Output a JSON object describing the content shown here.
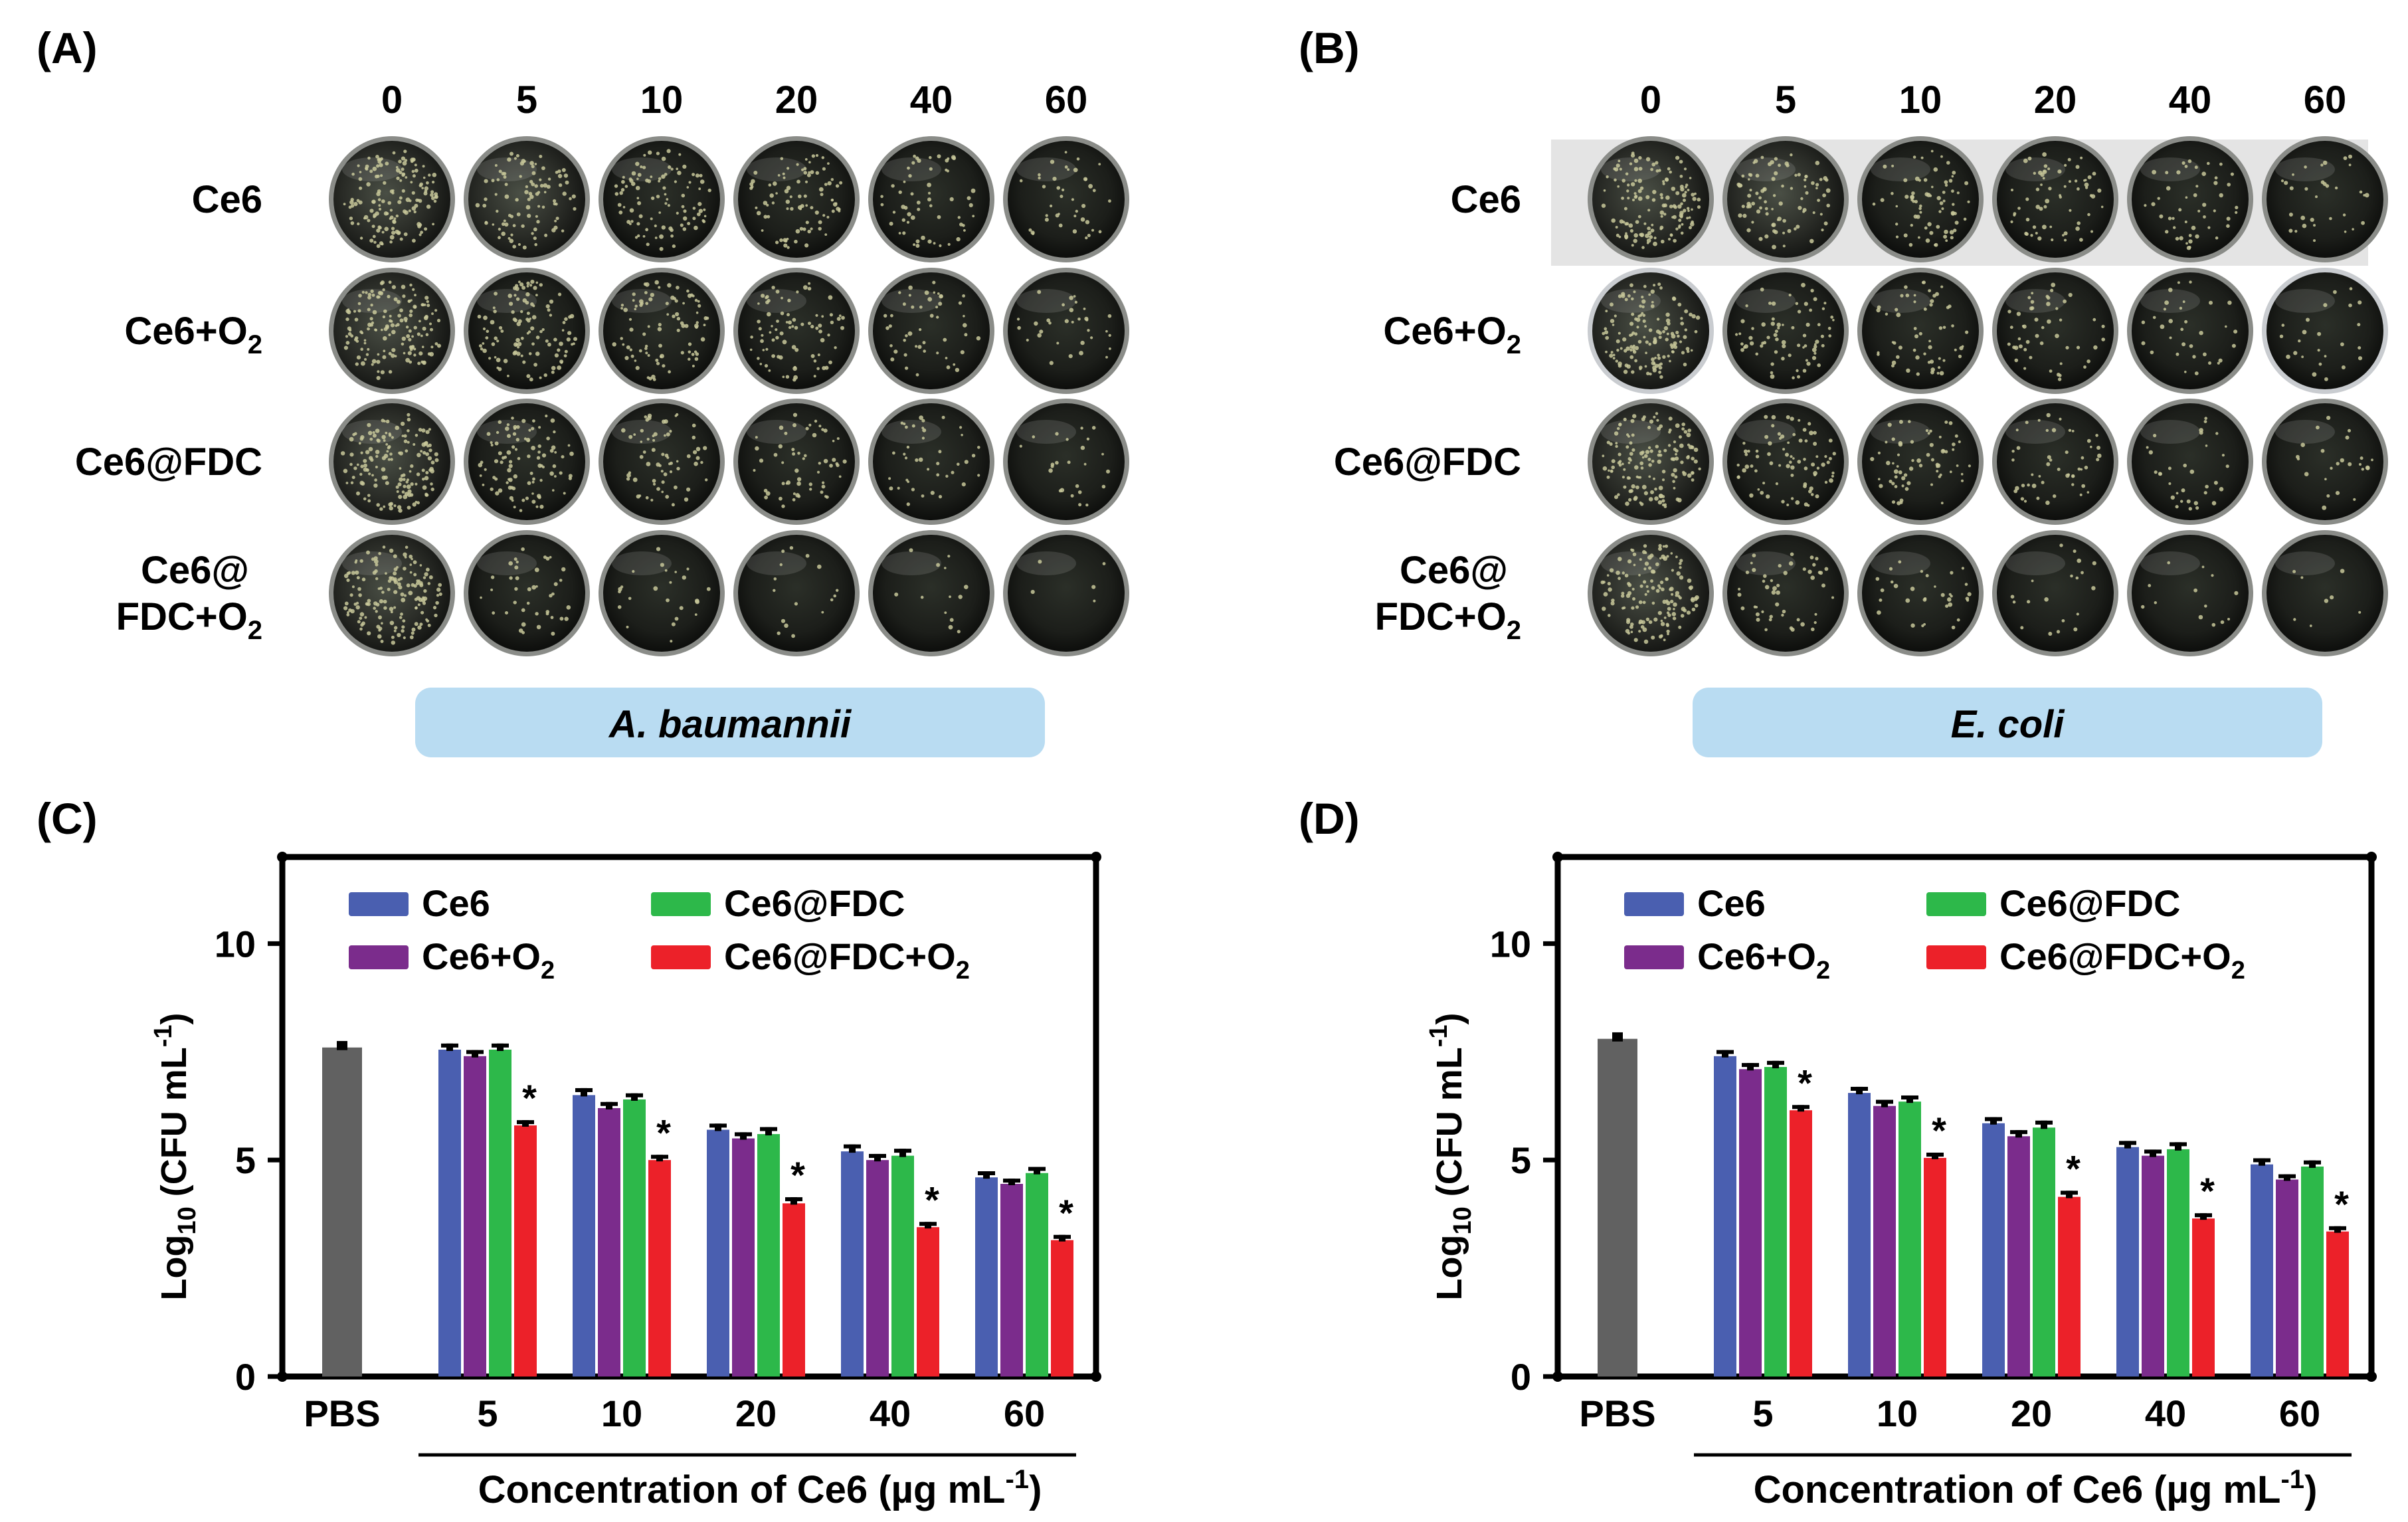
{
  "panels": {
    "A": {
      "label": "(A)",
      "species": "A. baumannii"
    },
    "B": {
      "label": "(B)",
      "species": "E. coli"
    },
    "C": {
      "label": "(C)"
    },
    "D": {
      "label": "(D)"
    }
  },
  "plates": {
    "columns": [
      "0",
      "5",
      "10",
      "20",
      "40",
      "60"
    ],
    "rows": [
      {
        "name": "Ce6",
        "lines": [
          {
            "t": "Ce6"
          }
        ]
      },
      {
        "name": "Ce6+O2",
        "lines": [
          {
            "t": "Ce6+O",
            "sub": "2"
          }
        ]
      },
      {
        "name": "Ce6@FDC",
        "lines": [
          {
            "t": "Ce6@FDC"
          }
        ]
      },
      {
        "name": "Ce6@FDC+O2",
        "lines": [
          {
            "t": "Ce6@"
          },
          {
            "t": "FDC+O",
            "sub": "2"
          }
        ]
      }
    ],
    "colony_density_A": [
      [
        0.95,
        0.6,
        0.6,
        0.55,
        0.35,
        0.25
      ],
      [
        0.95,
        0.7,
        0.55,
        0.5,
        0.3,
        0.2
      ],
      [
        0.95,
        0.6,
        0.4,
        0.35,
        0.25,
        0.15
      ],
      [
        0.95,
        0.25,
        0.15,
        0.1,
        0.08,
        0.03
      ]
    ],
    "colony_density_B": [
      [
        0.9,
        0.55,
        0.45,
        0.4,
        0.3,
        0.2
      ],
      [
        0.9,
        0.45,
        0.35,
        0.3,
        0.2,
        0.15
      ],
      [
        0.9,
        0.5,
        0.4,
        0.3,
        0.2,
        0.15
      ],
      [
        0.9,
        0.3,
        0.2,
        0.12,
        0.08,
        0.05
      ]
    ]
  },
  "chart_data": [
    {
      "panel": "C",
      "type": "bar",
      "title": "",
      "ylabel": "Log10 (CFU mL-1)",
      "ylabel_main": "Log",
      "ylabel_sub": "10",
      "ylabel_rest": " (CFU mL",
      "ylabel_sup": "-1",
      "ylabel_end": ")",
      "xlabel": "Concentration of Ce6 (µg mL-1)",
      "xlabel_main": "Concentration of Ce6 (µg mL",
      "xlabel_sup": "-1",
      "xlabel_end": ")",
      "ylim": [
        0,
        12
      ],
      "yticks": [
        0,
        5,
        10
      ],
      "ytick_labels": [
        "0",
        "5",
        "10"
      ],
      "control": {
        "label": "PBS",
        "value": 7.6,
        "error": 0.15,
        "color": "#616161"
      },
      "categories": [
        "5",
        "10",
        "20",
        "40",
        "60"
      ],
      "series": [
        {
          "name": "Ce6",
          "color": "#4a5fb0",
          "values": [
            7.55,
            6.5,
            5.7,
            5.2,
            4.6
          ],
          "errors": [
            0.08,
            0.1,
            0.08,
            0.1,
            0.08
          ]
        },
        {
          "name": "Ce6+O2",
          "color": "#7b2c8c",
          "values": [
            7.4,
            6.2,
            5.5,
            5.0,
            4.45
          ],
          "errors": [
            0.08,
            0.08,
            0.08,
            0.08,
            0.06
          ]
        },
        {
          "name": "Ce6@FDC",
          "color": "#2db84a",
          "values": [
            7.55,
            6.4,
            5.6,
            5.1,
            4.7
          ],
          "errors": [
            0.08,
            0.08,
            0.1,
            0.1,
            0.08
          ]
        },
        {
          "name": "Ce6@FDC+O2",
          "color": "#ec2129",
          "values": [
            5.8,
            5.0,
            4.0,
            3.45,
            3.15
          ],
          "errors": [
            0.06,
            0.06,
            0.08,
            0.06,
            0.06
          ]
        }
      ],
      "significance": "*",
      "legend": [
        {
          "name": "Ce6",
          "main": "Ce6",
          "sub": ""
        },
        {
          "name": "Ce6@FDC",
          "main": "Ce6@FDC",
          "sub": ""
        },
        {
          "name": "Ce6+O2",
          "main": "Ce6+O",
          "sub": "2"
        },
        {
          "name": "Ce6@FDC+O2",
          "main": "Ce6@FDC+O",
          "sub": "2"
        }
      ]
    },
    {
      "panel": "D",
      "type": "bar",
      "title": "",
      "ylabel": "Log10 (CFU mL-1)",
      "ylabel_main": "Log",
      "ylabel_sub": "10",
      "ylabel_rest": " (CFU mL",
      "ylabel_sup": "-1",
      "ylabel_end": ")",
      "xlabel": "Concentration of Ce6 (µg mL-1)",
      "xlabel_main": "Concentration of Ce6 (µg mL",
      "xlabel_sup": "-1",
      "xlabel_end": ")",
      "ylim": [
        0,
        12
      ],
      "yticks": [
        0,
        5,
        10
      ],
      "ytick_labels": [
        "0",
        "5",
        "10"
      ],
      "control": {
        "label": "PBS",
        "value": 7.8,
        "error": 0.15,
        "color": "#616161"
      },
      "categories": [
        "5",
        "10",
        "20",
        "40",
        "60"
      ],
      "series": [
        {
          "name": "Ce6",
          "color": "#4a5fb0",
          "values": [
            7.4,
            6.55,
            5.85,
            5.3,
            4.9
          ],
          "errors": [
            0.08,
            0.08,
            0.08,
            0.08,
            0.08
          ]
        },
        {
          "name": "Ce6+O2",
          "color": "#7b2c8c",
          "values": [
            7.1,
            6.25,
            5.55,
            5.1,
            4.55
          ],
          "errors": [
            0.08,
            0.08,
            0.08,
            0.08,
            0.06
          ]
        },
        {
          "name": "Ce6@FDC",
          "color": "#2db84a",
          "values": [
            7.15,
            6.35,
            5.75,
            5.25,
            4.85
          ],
          "errors": [
            0.08,
            0.08,
            0.1,
            0.1,
            0.08
          ]
        },
        {
          "name": "Ce6@FDC+O2",
          "color": "#ec2129",
          "values": [
            6.15,
            5.05,
            4.15,
            3.65,
            3.35
          ],
          "errors": [
            0.06,
            0.06,
            0.08,
            0.06,
            0.06
          ]
        }
      ],
      "significance": "*",
      "legend": [
        {
          "name": "Ce6",
          "main": "Ce6",
          "sub": ""
        },
        {
          "name": "Ce6@FDC",
          "main": "Ce6@FDC",
          "sub": ""
        },
        {
          "name": "Ce6+O2",
          "main": "Ce6+O",
          "sub": "2"
        },
        {
          "name": "Ce6@FDC+O2",
          "main": "Ce6@FDC+O",
          "sub": "2"
        }
      ]
    }
  ]
}
